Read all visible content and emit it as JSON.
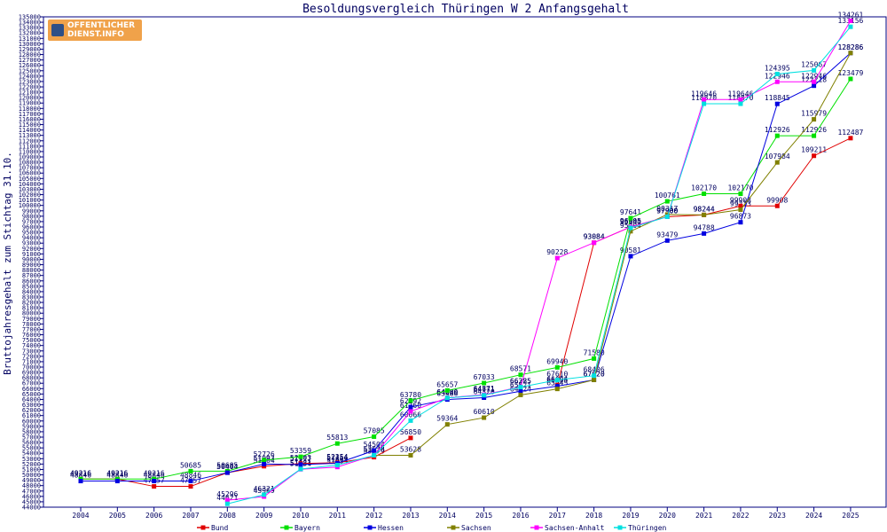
{
  "chart_data": {
    "type": "line",
    "title": "Besoldungsvergleich Thüringen W 2 Anfangsgehalt",
    "ylabel": "Bruttojahresgehalt zum Stichtag 31.10.",
    "xlabel": "",
    "ylim": [
      44000,
      135000
    ],
    "y_tick_step": 1000,
    "categories": [
      "2004",
      "2005",
      "2006",
      "2007",
      "2008",
      "2009",
      "2010",
      "2011",
      "2012",
      "2013",
      "2014",
      "2015",
      "2016",
      "2017",
      "2018",
      "2019",
      "2020",
      "2021",
      "2022",
      "2023",
      "2024",
      "2025"
    ],
    "grid": false,
    "legend_position": "bottom",
    "series": [
      {
        "name": "Bund",
        "color": "#e00000",
        "values": [
          49216,
          49216,
          47857,
          47857,
          50404,
          51604,
          52103,
          52254,
          53279,
          56850,
          null,
          null,
          null,
          66604,
          93084,
          96005,
          97900,
          98244,
          99908,
          99908,
          109211,
          112487
        ]
      },
      {
        "name": "Bayern",
        "color": "#00e000",
        "values": [
          49216,
          49216,
          49216,
          50685,
          50685,
          52726,
          53359,
          55813,
          57085,
          63780,
          65657,
          67033,
          68571,
          69940,
          71580,
          97641,
          100761,
          102170,
          102170,
          112926,
          112926,
          123479
        ]
      },
      {
        "name": "Hessen",
        "color": "#0000e0",
        "values": [
          48846,
          48846,
          48846,
          48846,
          50404,
          51993,
          51917,
          52154,
          54504,
          62592,
          63986,
          64320,
          65521,
          66455,
          67620,
          90581,
          93479,
          94788,
          96873,
          118845,
          122218,
          128286
        ]
      },
      {
        "name": "Sachsen",
        "color": "#808000",
        "values": [
          null,
          null,
          null,
          null,
          null,
          null,
          null,
          null,
          53628,
          53628,
          59364,
          60610,
          64824,
          65945,
          67620,
          95204,
          98317,
          98244,
          99213,
          107984,
          115979,
          128286
        ]
      },
      {
        "name": "Sachsen-Anhalt",
        "color": "#ff00ff",
        "values": [
          null,
          null,
          null,
          null,
          45296,
          45969,
          51034,
          51454,
          53628,
          61760,
          64280,
          64871,
          66325,
          90228,
          93084,
          96005,
          97900,
          119646,
          119646,
          122946,
          122946,
          134261
        ]
      },
      {
        "name": "Thüringen",
        "color": "#00e0e0",
        "values": [
          null,
          null,
          null,
          null,
          44621,
          46321,
          51081,
          51809,
          53628,
          60066,
          64280,
          64771,
          66285,
          67610,
          68406,
          95840,
          97900,
          118870,
          118870,
          124395,
          125067,
          133156
        ]
      }
    ]
  }
}
